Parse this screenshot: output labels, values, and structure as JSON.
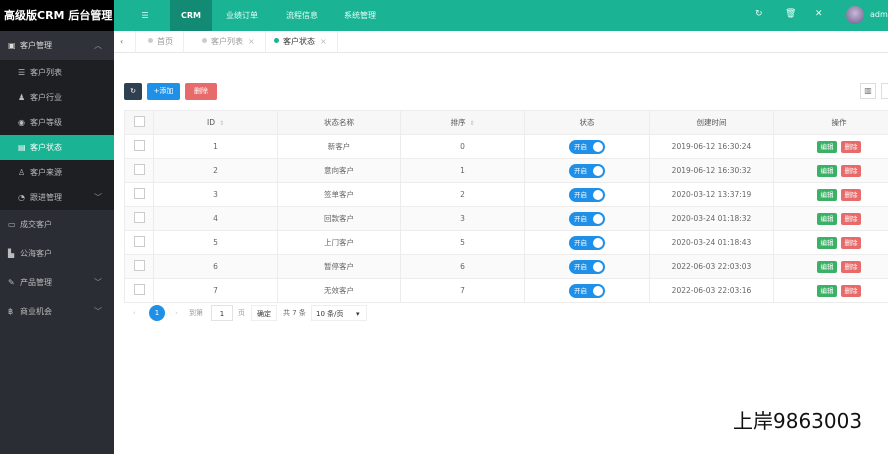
{
  "app": {
    "title": "高级版CRM  后台管理",
    "user": "admin",
    "watermark": "上岸9863003"
  },
  "topnav": {
    "items": [
      "CRM",
      "业绩订单",
      "流程信息",
      "系统管理"
    ],
    "active": "CRM"
  },
  "sidebar": {
    "group": "客户管理",
    "sub": [
      "客户列表",
      "客户行业",
      "客户等级",
      "客户状态",
      "客户来源",
      "跟进管理"
    ],
    "active": "客户状态",
    "items": [
      "成交客户",
      "公海客户",
      "产品管理",
      "商业机会"
    ]
  },
  "tabs": [
    {
      "label": "首页"
    },
    {
      "label": "客户列表"
    },
    {
      "label": "客户状态"
    }
  ],
  "toolbar": {
    "add": "+添加",
    "delete": "删除"
  },
  "table": {
    "headers": [
      "ID",
      "状态名称",
      "排序",
      "状态",
      "创建时间",
      "操作"
    ],
    "rows": [
      {
        "id": "1",
        "name": "新客户",
        "sort": "0",
        "status": "开启",
        "time": "2019-06-12 16:30:24"
      },
      {
        "id": "2",
        "name": "意向客户",
        "sort": "1",
        "status": "开启",
        "time": "2019-06-12 16:30:32"
      },
      {
        "id": "3",
        "name": "签单客户",
        "sort": "2",
        "status": "开启",
        "time": "2020-03-12 13:37:19"
      },
      {
        "id": "4",
        "name": "回款客户",
        "sort": "3",
        "status": "开启",
        "time": "2020-03-24 01:18:32"
      },
      {
        "id": "5",
        "name": "上门客户",
        "sort": "5",
        "status": "开启",
        "time": "2020-03-24 01:18:43"
      },
      {
        "id": "6",
        "name": "暂停客户",
        "sort": "6",
        "status": "开启",
        "time": "2022-06-03 22:03:03"
      },
      {
        "id": "7",
        "name": "无效客户",
        "sort": "7",
        "status": "开启",
        "time": "2022-06-03 22:03:16"
      }
    ],
    "edit": "编辑",
    "del": "删除"
  },
  "pager": {
    "current": "1",
    "goto": "到第",
    "page_input": "1",
    "page_unit": "页",
    "confirm": "确定",
    "total": "共 7 条",
    "page_size": "10 条/页"
  },
  "colors": {
    "accent": "#1ab394",
    "switch": "#1e90e8",
    "edit": "#3cb066",
    "delete": "#e86b6b"
  }
}
